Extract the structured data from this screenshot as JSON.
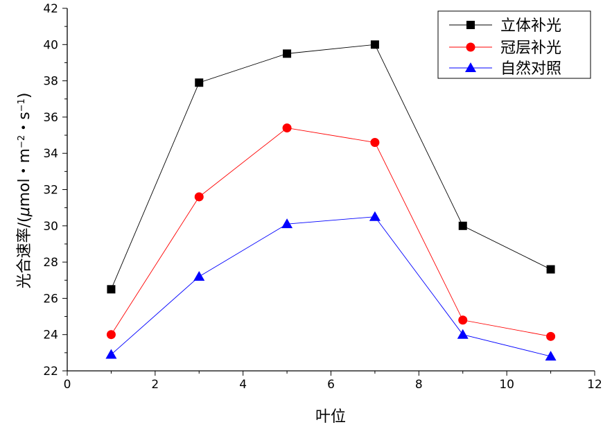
{
  "chart_data": {
    "type": "line",
    "xlabel": "叶位",
    "ylabel": "光合速率/(μmol・m⁻²・s⁻¹)",
    "ylabel_parts": {
      "prefix": "光合速率/(",
      "mu": "μ",
      "unit_m": "mol・m",
      "exp1": "−2",
      "unit_s": "・s",
      "exp2": "−1",
      "suffix": ")"
    },
    "xlim": [
      0,
      12
    ],
    "ylim": [
      22,
      42
    ],
    "xticks": [
      "0",
      "2",
      "4",
      "6",
      "8",
      "10",
      "12"
    ],
    "yticks": [
      "22",
      "24",
      "26",
      "28",
      "30",
      "32",
      "34",
      "36",
      "38",
      "40",
      "42"
    ],
    "grid": false,
    "legend_position": "top-right",
    "x": [
      1,
      3,
      5,
      7,
      9,
      11
    ],
    "series": [
      {
        "name": "立体补光",
        "marker": "square",
        "color": "#000000",
        "values": [
          26.5,
          37.9,
          39.5,
          40.0,
          30.0,
          27.6
        ]
      },
      {
        "name": "冠层补光",
        "marker": "circle",
        "color": "#ff0000",
        "values": [
          24.0,
          31.6,
          35.4,
          34.6,
          24.8,
          23.9
        ]
      },
      {
        "name": "自然对照",
        "marker": "triangle",
        "color": "#0000ff",
        "values": [
          22.9,
          27.2,
          30.1,
          30.5,
          24.0,
          22.8
        ]
      }
    ]
  }
}
